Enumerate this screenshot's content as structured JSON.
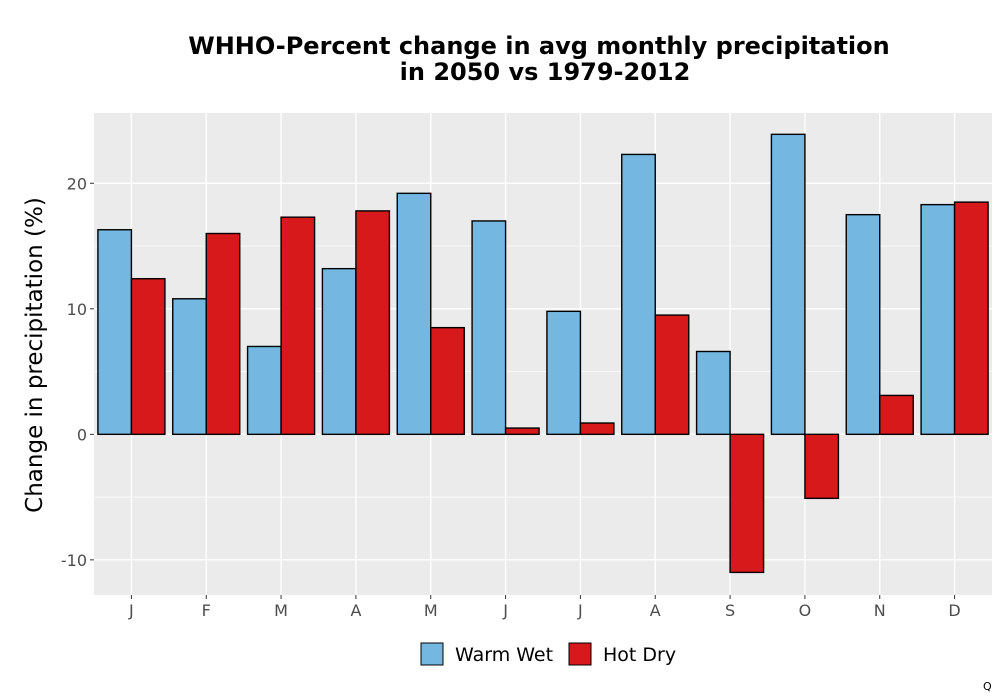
{
  "chart_data": {
    "type": "bar",
    "title_lines": [
      "WHHO-Percent change in avg monthly precipitation",
      "in 2050 vs 1979-2012"
    ],
    "xlabel": "",
    "ylabel": "Change in precipitation (%)",
    "categories": [
      "J",
      "F",
      "M",
      "A",
      "M",
      "J",
      "J",
      "A",
      "S",
      "O",
      "N",
      "D"
    ],
    "series": [
      {
        "name": "Warm Wet",
        "color": "#74b7e0",
        "values": [
          16.3,
          10.8,
          7.0,
          13.2,
          19.2,
          17.0,
          9.8,
          22.3,
          6.6,
          23.9,
          17.5,
          18.3
        ]
      },
      {
        "name": "Hot Dry",
        "color": "#d7191c",
        "values": [
          12.4,
          16.0,
          17.3,
          17.8,
          8.5,
          0.5,
          0.9,
          9.5,
          -11.0,
          -5.1,
          3.1,
          18.5
        ]
      }
    ],
    "ylim": [
      -12.8,
      25.6
    ],
    "yticks": [
      -10,
      0,
      10,
      20
    ],
    "grid": true,
    "legend_position": "bottom",
    "panel_background": "#ebebeb",
    "corner_mark": "Q"
  }
}
